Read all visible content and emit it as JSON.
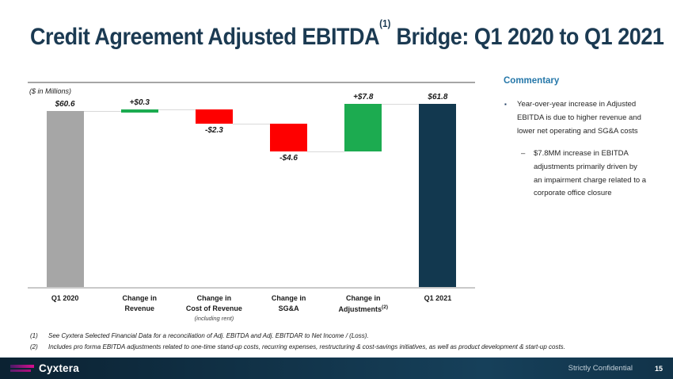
{
  "title": {
    "main": "Credit Agreement Adjusted EBITDA",
    "sup": "(1)",
    "rest": " Bridge:  Q1 2020 to Q1 2021"
  },
  "chart_data": {
    "type": "bar",
    "subtype": "waterfall",
    "title": "Credit Agreement Adjusted EBITDA Bridge: Q1 2020 to Q1 2021",
    "units_label": "($ in Millions)",
    "categories": [
      {
        "lines": [
          "Q1 2020"
        ]
      },
      {
        "lines": [
          "Change in",
          "Revenue"
        ]
      },
      {
        "lines": [
          "Change in",
          "Cost of Revenue"
        ],
        "note": "(including rent)"
      },
      {
        "lines": [
          "Change in",
          "SG&A"
        ]
      },
      {
        "lines": [
          "Change in",
          "Adjustments"
        ],
        "sup": "(2)"
      },
      {
        "lines": [
          "Q1 2021"
        ]
      }
    ],
    "values": [
      60.6,
      0.3,
      -2.3,
      -4.6,
      7.8,
      61.8
    ],
    "bar_types": [
      "total",
      "delta",
      "delta",
      "delta",
      "delta",
      "total"
    ],
    "bar_labels": [
      "$60.6",
      "+$0.3",
      "-$2.3",
      "-$4.6",
      "+$7.8",
      "$61.8"
    ],
    "bar_colors": [
      "#a6a6a6",
      "#1cab50",
      "#fe0000",
      "#fe0000",
      "#1cab50",
      "#12384f"
    ],
    "connector_color": "#d9d9d9",
    "ylim": [
      31.5,
      65
    ],
    "grid": false,
    "legend": null
  },
  "commentary": {
    "heading": "Commentary",
    "bullets": [
      {
        "marker": "▪",
        "text": "Year-over-year increase in Adjusted EBITDA is due to higher revenue and lower net operating and SG&A costs"
      },
      {
        "marker": "–",
        "text": "$7.8MM  increase in EBITDA adjustments primarily driven by an impairment charge related to a corporate office closure"
      }
    ]
  },
  "footnotes": {
    "items": [
      {
        "num": "(1)",
        "text": "See Cyxtera Selected Financial Data for a reconciliation of Adj. EBITDA and Adj. EBITDAR to Net Income / (Loss)."
      },
      {
        "num": "(2)",
        "text": "Includes pro forma EBITDA adjustments related to one-time stand-up costs, recurring expenses, restructuring & cost-savings initiatives, as well as product  development & start-up costs."
      }
    ]
  },
  "footer": {
    "brand": "Cyxtera",
    "confidentiality": "Strictly Confidential",
    "page_number": "15"
  },
  "colors": {
    "title_navy": "#1b3a52",
    "commentary_blue": "#2577a9",
    "bar_gray": "#a6a6a6",
    "bar_green": "#1cab50",
    "bar_red": "#fe0000",
    "bar_navy": "#12384f",
    "logo_magenta": "#d90e8f",
    "footer_navy": "#0b2232"
  }
}
